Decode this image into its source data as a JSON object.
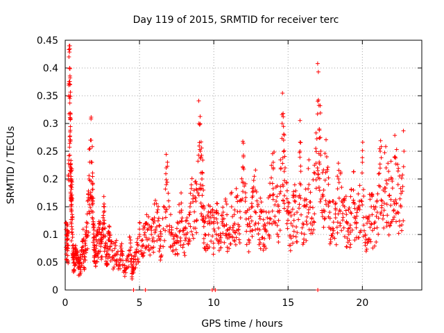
{
  "chart_data": {
    "type": "scatter",
    "title": "Day 119 of 2015, SRMTID for receiver terc",
    "xlabel": "GPS time / hours",
    "ylabel": "SRMTID / TECUs",
    "xlim": [
      0,
      24
    ],
    "ylim": [
      0,
      0.45
    ],
    "x_ticks": [
      0,
      5,
      10,
      15,
      20
    ],
    "x_tick_labels": [
      "0",
      "5",
      "10",
      "15",
      "20"
    ],
    "y_ticks": [
      0,
      0.05,
      0.1,
      0.15,
      0.2,
      0.25,
      0.3,
      0.35,
      0.4,
      0.45
    ],
    "y_tick_labels": [
      "0",
      "0.05",
      "0.1",
      "0.15",
      "0.2",
      "0.25",
      "0.3",
      "0.35",
      "0.4",
      "0.45"
    ],
    "grid": true,
    "marker": "+",
    "color": "#ff0000",
    "series": [
      {
        "name": "SRMTID",
        "x": [
          0.05,
          0.1,
          0.15,
          0.2,
          0.25,
          0.3,
          0.32,
          0.34,
          0.36,
          0.38,
          0.4,
          0.42,
          0.45,
          0.5,
          0.55,
          0.6,
          0.7,
          0.8,
          0.9,
          1.0,
          1.1,
          1.2,
          1.3,
          1.4,
          1.5,
          1.6,
          1.7,
          1.8,
          1.85,
          1.9,
          1.95,
          2.0,
          2.1,
          2.2,
          2.3,
          2.4,
          2.5,
          2.6,
          2.7,
          2.8,
          2.9,
          3.0,
          3.2,
          3.4,
          3.6,
          3.8,
          4.0,
          4.2,
          4.4,
          4.5,
          4.6,
          4.8,
          5.0,
          5.2,
          5.4,
          5.6,
          5.8,
          6.0,
          6.2,
          6.4,
          6.6,
          6.8,
          7.0,
          7.2,
          7.4,
          7.6,
          7.8,
          8.0,
          8.2,
          8.4,
          8.6,
          8.8,
          9.0,
          9.1,
          9.2,
          9.3,
          9.4,
          9.6,
          9.8,
          10.0,
          10.2,
          10.4,
          10.6,
          10.8,
          11.0,
          11.2,
          11.4,
          11.6,
          11.8,
          12.0,
          12.2,
          12.4,
          12.6,
          12.8,
          13.0,
          13.2,
          13.4,
          13.6,
          13.8,
          14.0,
          14.2,
          14.4,
          14.6,
          14.7,
          14.8,
          15.0,
          15.2,
          15.4,
          15.6,
          15.8,
          16.0,
          16.2,
          16.4,
          16.6,
          16.8,
          17.0,
          17.1,
          17.2,
          17.4,
          17.6,
          17.8,
          18.0,
          18.2,
          18.4,
          18.6,
          18.8,
          19.0,
          19.2,
          19.4,
          19.6,
          19.8,
          20.0,
          20.2,
          20.4,
          20.6,
          20.8,
          21.0,
          21.2,
          21.4,
          21.6,
          21.8,
          22.0,
          22.2,
          22.4,
          22.6,
          22.8
        ],
        "y": [
          0.12,
          0.09,
          0.1,
          0.08,
          0.42,
          0.4,
          0.37,
          0.31,
          0.27,
          0.22,
          0.15,
          0.16,
          0.19,
          0.1,
          0.06,
          0.05,
          0.08,
          0.07,
          0.04,
          0.05,
          0.07,
          0.09,
          0.06,
          0.1,
          0.12,
          0.2,
          0.27,
          0.23,
          0.19,
          0.12,
          0.09,
          0.07,
          0.08,
          0.1,
          0.12,
          0.09,
          0.11,
          0.14,
          0.08,
          0.07,
          0.09,
          0.1,
          0.06,
          0.08,
          0.05,
          0.07,
          0.04,
          0.06,
          0.09,
          0.03,
          0.05,
          0.07,
          0.1,
          0.09,
          0.12,
          0.11,
          0.1,
          0.13,
          0.14,
          0.09,
          0.11,
          0.22,
          0.15,
          0.08,
          0.1,
          0.12,
          0.14,
          0.1,
          0.13,
          0.15,
          0.17,
          0.16,
          0.3,
          0.25,
          0.2,
          0.18,
          0.1,
          0.12,
          0.13,
          0.11,
          0.14,
          0.09,
          0.12,
          0.16,
          0.1,
          0.15,
          0.12,
          0.17,
          0.13,
          0.24,
          0.14,
          0.12,
          0.15,
          0.18,
          0.12,
          0.14,
          0.11,
          0.13,
          0.17,
          0.23,
          0.16,
          0.14,
          0.3,
          0.27,
          0.22,
          0.15,
          0.12,
          0.17,
          0.14,
          0.25,
          0.12,
          0.15,
          0.19,
          0.13,
          0.21,
          0.34,
          0.29,
          0.25,
          0.18,
          0.24,
          0.14,
          0.16,
          0.13,
          0.2,
          0.16,
          0.15,
          0.12,
          0.14,
          0.18,
          0.12,
          0.16,
          0.23,
          0.1,
          0.13,
          0.15,
          0.12,
          0.14,
          0.25,
          0.18,
          0.22,
          0.17,
          0.2,
          0.24,
          0.19,
          0.15,
          0.25
        ],
        "x_outliers": [
          4.6,
          5.4,
          9.9,
          10.1,
          17.0
        ],
        "y_outliers": [
          0.0,
          0.0,
          0.0,
          0.0,
          0.0
        ]
      }
    ]
  }
}
